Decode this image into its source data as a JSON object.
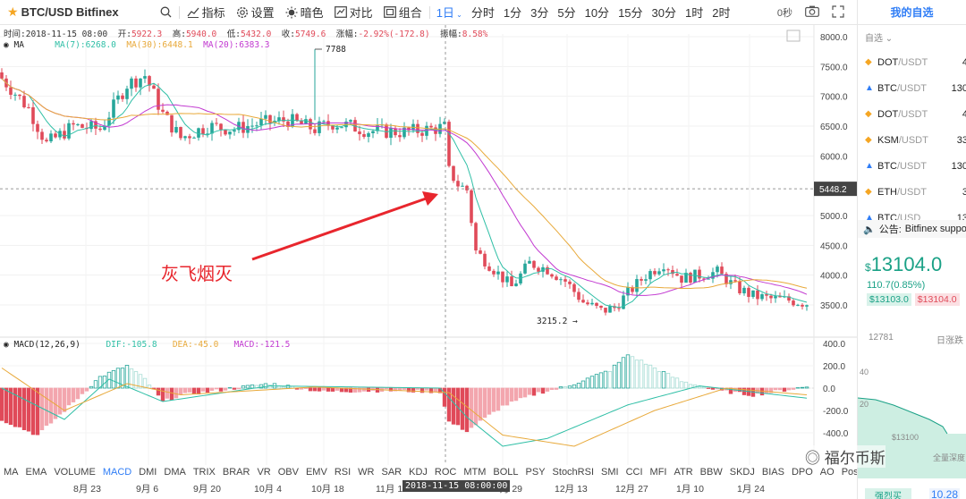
{
  "toolbar": {
    "symbol": "BTC/USD Bitfinex",
    "indicators_label": "指标",
    "settings_label": "设置",
    "dark_label": "暗色",
    "compare_label": "对比",
    "combine_label": "组合",
    "intervals": [
      "1日",
      "分时",
      "1分",
      "3分",
      "5分",
      "10分",
      "15分",
      "30分",
      "1时",
      "2时"
    ],
    "active_interval": "1日",
    "countdown": "0秒"
  },
  "ohlc": {
    "time_label": "时间:",
    "time": "2018-11-15 08:00",
    "open_label": "开:",
    "open": "5922.3",
    "high_label": "高:",
    "high": "5940.0",
    "low_label": "低:",
    "low": "5432.0",
    "close_label": "收:",
    "close": "5749.6",
    "change_label": "涨幅:",
    "change": "-2.92%(-172.8)",
    "amp_label": "振幅:",
    "amp": "8.58%"
  },
  "ma_legend": {
    "name": "MA",
    "ma7": "MA(7):6268.0",
    "ma30": "MA(30):6448.1",
    "ma20": "MA(20):6383.3"
  },
  "macd_legend": {
    "name": "MACD(12,26,9)",
    "dif": "DIF:-105.8",
    "dea": "DEA:-45.0",
    "macd": "MACD:-121.5"
  },
  "price_axis": [
    "8000.0",
    "7500.0",
    "7000.0",
    "6500.0",
    "6000.0",
    "5000.0",
    "4500.0",
    "4000.0",
    "3500.0"
  ],
  "crosshair_price": "5448.2",
  "high_marker": "7788",
  "low_marker": "3215.2",
  "macd_axis": [
    "400.0",
    "200.0",
    "0.0",
    "-200.0",
    "-400.0"
  ],
  "annotation": "灰飞烟灭",
  "indicator_tabs": [
    "MA",
    "EMA",
    "VOLUME",
    "MACD",
    "DMI",
    "DMA",
    "TRIX",
    "BRAR",
    "VR",
    "OBV",
    "EMV",
    "RSI",
    "WR",
    "SAR",
    "KDJ",
    "ROC",
    "MTM",
    "BOLL",
    "PSY",
    "StochRSI",
    "SMI",
    "CCI",
    "MFI",
    "ATR",
    "BBW",
    "SKDJ",
    "BIAS",
    "DPO",
    "AO",
    "Position"
  ],
  "active_indicator": "MACD",
  "date_labels": [
    "8月 23",
    "9月 6",
    "9月 20",
    "10月 4",
    "10月 18",
    "11月 1",
    "11月 29",
    "12月 13",
    "12月 27",
    "1月 10",
    "1月 24"
  ],
  "crosshair_date": "2018-11-15 08:00:00",
  "sidebar": {
    "title": "我的自选",
    "group": "自选",
    "watchlist": [
      {
        "base": "DOT",
        "quote": "/USDT",
        "price": "4"
      },
      {
        "base": "BTC",
        "quote": "/USDT",
        "price": "130"
      },
      {
        "base": "DOT",
        "quote": "/USDT",
        "price": "4"
      },
      {
        "base": "KSM",
        "quote": "/USDT",
        "price": "33"
      },
      {
        "base": "BTC",
        "quote": "/USDT",
        "price": "130"
      },
      {
        "base": "ETH",
        "quote": "/USDT",
        "price": "3"
      },
      {
        "base": "BTC",
        "quote": "/USD",
        "price": "13"
      }
    ],
    "notice_label": "公告:",
    "notice_text": "Bitfinex suppo",
    "price_prefix": "$",
    "price": "13104.0",
    "change": "110.7(0.85%)",
    "bid": "$13103.0",
    "ask": "$13104.0",
    "mini_left": "12781",
    "mini_right": "日涨跌",
    "mini_val": "40",
    "mini_val2": "20",
    "mini_low": "$13100",
    "mini_note": "全量深度",
    "bottom_btn": "强烈买",
    "bottom_price": "10.28"
  },
  "watermark": "福尔币斯",
  "colors": {
    "up": "#26a69a",
    "down": "#e04a59",
    "ma7": "#2fbfa6",
    "ma30": "#e8a93a",
    "ma20": "#c23ad1",
    "dif": "#2fbfa6",
    "dea": "#e8a93a",
    "accent": "#2f7df6"
  }
}
